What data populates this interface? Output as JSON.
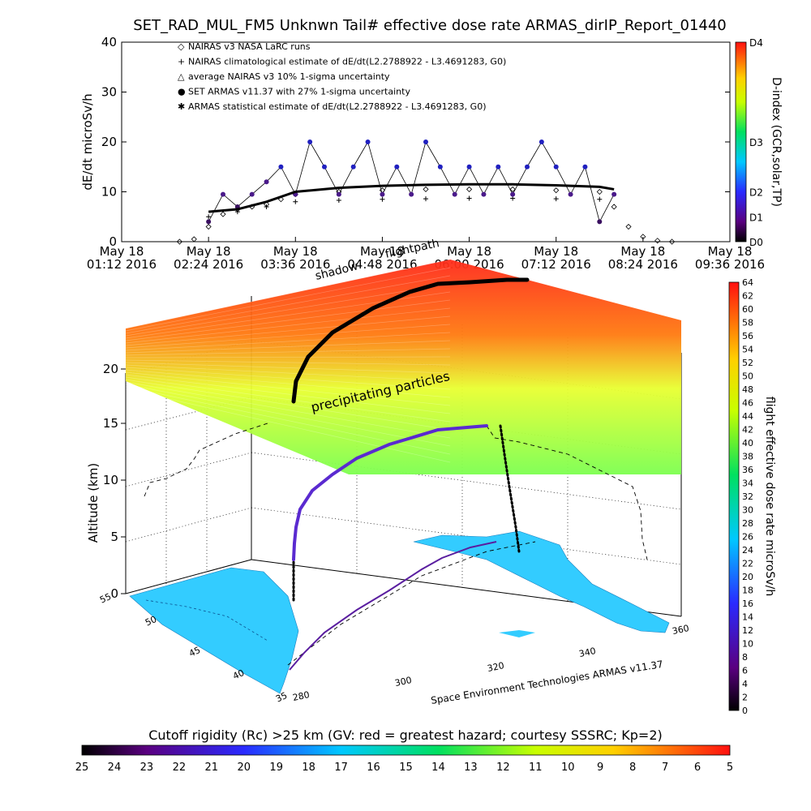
{
  "title": "SET_RAD_MUL_FM5 Unknwn Tail#  effective dose rate ARMAS_dirIP_Report_01440",
  "top_chart": {
    "ylabel": "dE/dt microSv/h",
    "yticks": [
      "0",
      "10",
      "20",
      "30",
      "40"
    ],
    "xticks": [
      {
        "date": "May 18",
        "time": "01:12 2016"
      },
      {
        "date": "May 18",
        "time": "02:24 2016"
      },
      {
        "date": "May 18",
        "time": "03:36 2016"
      },
      {
        "date": "May 18",
        "time": "04:48 2016"
      },
      {
        "date": "May 18",
        "time": "06:00 2016"
      },
      {
        "date": "May 18",
        "time": "07:12 2016"
      },
      {
        "date": "May 18",
        "time": "08:24 2016"
      },
      {
        "date": "May 18",
        "time": "09:36 2016"
      }
    ],
    "legend": [
      {
        "symbol": "◇",
        "text": "NAIRAS v3 NASA LaRC runs"
      },
      {
        "symbol": "+",
        "text": "NAIRAS climatological estimate of dE/dt(L2.2788922 - L3.4691283, G0)"
      },
      {
        "symbol": "△",
        "text": "average NAIRAS v3 10% 1-sigma uncertainty"
      },
      {
        "symbol": "●",
        "text": "SET ARMAS v11.37 with 27% 1-sigma uncertainty"
      },
      {
        "symbol": "✱",
        "text": "ARMAS statistical estimate of dE/dt(L2.2788922 - L3.4691283, G0)"
      }
    ],
    "dindex_label": "D-index (GCR,solar,TP)",
    "dindex_ticks": [
      "D0",
      "D1",
      "D2",
      "D3",
      "D4"
    ]
  },
  "bottom_chart": {
    "zlabel": "Altitude (km)",
    "zticks": [
      "0",
      "5",
      "10",
      "15",
      "20"
    ],
    "lat_ticks": [
      "35",
      "40",
      "45",
      "50",
      "55"
    ],
    "lon_ticks": [
      "280",
      "300",
      "320",
      "340",
      "360"
    ],
    "annotation_particles": "precipitating particles",
    "annotation_shadow": "shadow",
    "annotation_flightpath": "flightpath",
    "credit": "Space Environment Technologies ARMAS v11.37",
    "dose_colorbar_label": "flight effective dose rate microSv/h",
    "dose_ticks": [
      "0",
      "2",
      "4",
      "6",
      "8",
      "10",
      "12",
      "14",
      "16",
      "18",
      "20",
      "22",
      "24",
      "26",
      "28",
      "30",
      "32",
      "34",
      "36",
      "38",
      "40",
      "42",
      "44",
      "46",
      "48",
      "50",
      "52",
      "54",
      "56",
      "58",
      "60",
      "62",
      "64"
    ]
  },
  "cutoff_bar": {
    "title": "Cutoff rigidity (Rc) >25 km (GV: red = greatest hazard; courtesy SSSRC; Kp=2)",
    "ticks": [
      "25",
      "24",
      "23",
      "22",
      "21",
      "20",
      "19",
      "18",
      "17",
      "16",
      "15",
      "14",
      "13",
      "12",
      "11",
      "10",
      "9",
      "8",
      "7",
      "6",
      "5"
    ]
  },
  "chart_data": {
    "type": "scatter",
    "x_unit": "UTC time, 18 May 2016",
    "xlim": [
      "01:12",
      "09:36"
    ],
    "ylim": [
      0,
      40
    ],
    "series": [
      {
        "name": "NAIRAS v3 NASA LaRC runs",
        "x": [
          "02:00",
          "02:12",
          "02:24",
          "02:36",
          "02:48",
          "03:00",
          "03:12",
          "03:24",
          "03:36",
          "04:12",
          "04:48",
          "05:24",
          "06:00",
          "06:36",
          "07:12",
          "07:48",
          "08:00",
          "08:12",
          "08:24",
          "08:36",
          "08:48"
        ],
        "y": [
          0,
          0.5,
          3,
          5.5,
          6.5,
          7,
          7.5,
          8.5,
          9.5,
          10,
          10.3,
          10.5,
          10.5,
          10.5,
          10.3,
          10,
          7,
          3,
          1,
          0.2,
          0
        ]
      },
      {
        "name": "NAIRAS climatological estimate of dE/dt(L2.2788922 - L3.4691283, G0)",
        "x": [
          "02:24",
          "02:48",
          "03:12",
          "03:36",
          "04:12",
          "04:48",
          "05:24",
          "06:00",
          "06:36",
          "07:12",
          "07:48"
        ],
        "y": [
          5,
          6,
          7,
          8,
          8.3,
          8.5,
          8.6,
          8.7,
          8.7,
          8.6,
          8.5
        ]
      },
      {
        "name": "SET ARMAS v11.37 with 27% 1-sigma uncertainty",
        "x": [
          "02:24",
          "02:36",
          "02:48",
          "03:00",
          "03:12",
          "03:24",
          "03:36",
          "03:48",
          "04:00",
          "04:12",
          "04:24",
          "04:36",
          "04:48",
          "05:00",
          "05:12",
          "05:24",
          "05:36",
          "05:48",
          "06:00",
          "06:12",
          "06:24",
          "06:36",
          "06:48",
          "07:00",
          "07:12",
          "07:24",
          "07:36",
          "07:48",
          "08:00"
        ],
        "y": [
          4,
          9.5,
          7,
          9.5,
          12,
          15,
          9.5,
          20,
          15,
          9.5,
          15,
          20,
          9.5,
          15,
          9.5,
          20,
          15,
          9.5,
          15,
          9.5,
          15,
          9.5,
          15,
          20,
          15,
          9.5,
          15,
          4,
          9.5
        ]
      },
      {
        "name": "ARMAS statistical estimate of dE/dt(L2.2788922 - L3.4691283, G0)",
        "x": [
          "02:24",
          "02:48",
          "03:12",
          "03:36",
          "04:12",
          "04:48",
          "05:24",
          "06:00",
          "06:36",
          "07:12",
          "07:48",
          "08:00"
        ],
        "y": [
          6,
          6.5,
          8,
          10,
          10.8,
          11.2,
          11.4,
          11.5,
          11.5,
          11.3,
          11,
          10.5
        ]
      }
    ],
    "dindex_scale": [
      "D0",
      "D1",
      "D2",
      "D3",
      "D4"
    ],
    "dose_scale_range": [
      0,
      64
    ],
    "cutoff_scale_range": [
      25,
      5
    ],
    "altitude_range_km": [
      0,
      20
    ]
  }
}
